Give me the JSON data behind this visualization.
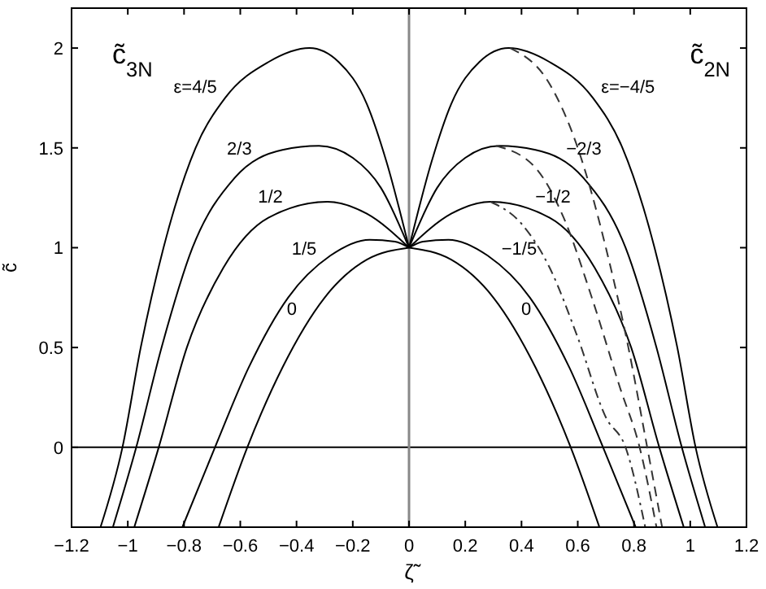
{
  "chart_data": {
    "type": "line",
    "xlabel": "ζ̃",
    "ylabel": "c̃",
    "xlim": [
      -1.2,
      1.2
    ],
    "ylim": [
      -0.4,
      2.2
    ],
    "xticks": [
      -1.2,
      -1,
      -0.8,
      -0.6,
      -0.4,
      -0.2,
      0,
      0.2,
      0.4,
      0.6,
      0.8,
      1,
      1.2
    ],
    "yticks": [
      0,
      0.5,
      1,
      1.5,
      2
    ],
    "grid": false,
    "marker": "none",
    "line_style": "solid",
    "series": [
      {
        "color": "#000000",
        "x": [
          -1.097,
          -1.019,
          -0.954,
          -0.873,
          -0.759,
          -0.654,
          -0.5,
          -0.354,
          -0.25,
          -0.15,
          -0.08,
          0
        ],
        "values": [
          -0.4,
          0,
          0.5,
          1,
          1.5,
          1.75,
          1.93,
          2,
          1.93,
          1.72,
          1.43,
          1
        ]
      },
      {
        "color": "#000000",
        "x": [
          -1.053,
          -0.97,
          -0.88,
          -0.77,
          -0.62,
          -0.45,
          -0.32,
          -0.2,
          -0.1,
          0
        ],
        "values": [
          -0.4,
          0,
          0.5,
          1,
          1.35,
          1.49,
          1.51,
          1.45,
          1.3,
          1
        ]
      },
      {
        "color": "#000000",
        "x": [
          -0.977,
          -0.89,
          -0.79,
          -0.66,
          -0.5,
          -0.29,
          -0.15,
          0
        ],
        "values": [
          -0.4,
          0,
          0.5,
          0.9,
          1.15,
          1.23,
          1.17,
          1
        ]
      },
      {
        "color": "#000000",
        "x": [
          -0.806,
          -0.69,
          -0.57,
          -0.43,
          -0.28,
          -0.14,
          -0.05,
          0
        ],
        "values": [
          -0.4,
          0,
          0.4,
          0.75,
          0.96,
          1.04,
          1.03,
          1
        ]
      },
      {
        "color": "#000000",
        "x": [
          -0.677,
          -0.575,
          -0.45,
          -0.3,
          -0.15,
          0
        ],
        "values": [
          -0.4,
          0,
          0.4,
          0.75,
          0.94,
          1
        ]
      },
      {
        "color": "#000000",
        "x": [
          0,
          0.08,
          0.15,
          0.25,
          0.354,
          0.5,
          0.654,
          0.759,
          0.873,
          0.954,
          1.019,
          1.097
        ],
        "values": [
          1,
          1.43,
          1.72,
          1.93,
          2,
          1.93,
          1.75,
          1.5,
          1,
          0.5,
          0,
          -0.4
        ]
      },
      {
        "color": "#000000",
        "x": [
          0,
          0.1,
          0.2,
          0.32,
          0.45,
          0.62,
          0.77,
          0.88,
          0.97,
          1.053
        ],
        "values": [
          1,
          1.3,
          1.45,
          1.51,
          1.49,
          1.35,
          1,
          0.5,
          0,
          -0.4
        ]
      },
      {
        "color": "#000000",
        "x": [
          0,
          0.15,
          0.29,
          0.5,
          0.66,
          0.79,
          0.89,
          0.977
        ],
        "values": [
          1,
          1.17,
          1.23,
          1.15,
          0.9,
          0.5,
          0,
          -0.4
        ]
      },
      {
        "color": "#000000",
        "x": [
          0,
          0.05,
          0.14,
          0.28,
          0.43,
          0.57,
          0.69,
          0.806
        ],
        "values": [
          1,
          1.03,
          1.04,
          0.96,
          0.75,
          0.4,
          0,
          -0.4
        ]
      },
      {
        "color": "#000000",
        "x": [
          0,
          0.15,
          0.3,
          0.45,
          0.575,
          0.677
        ],
        "values": [
          1,
          0.94,
          0.75,
          0.4,
          0,
          -0.4
        ]
      },
      {
        "color": "#333333",
        "line_style": "dashed",
        "x": [
          0.36,
          0.5,
          0.6,
          0.7,
          0.78,
          0.847,
          0.9
        ],
        "values": [
          2,
          1.82,
          1.5,
          1,
          0.5,
          0,
          -0.4
        ]
      },
      {
        "color": "#333333",
        "line_style": "dashed",
        "x": [
          0.31,
          0.45,
          0.55,
          0.65,
          0.75,
          0.82,
          0.88
        ],
        "values": [
          1.51,
          1.4,
          1.15,
          0.75,
          0.3,
          0,
          -0.4
        ]
      },
      {
        "color": "#333333",
        "line_style": "dotted",
        "x": [
          0.29,
          0.4,
          0.5,
          0.6,
          0.7,
          0.77,
          0.84
        ],
        "values": [
          1.23,
          1.12,
          0.9,
          0.55,
          0.15,
          0,
          -0.4
        ]
      }
    ],
    "ref_lines": [
      {
        "axis": "y",
        "value": 0,
        "color": "#000000"
      },
      {
        "axis": "x",
        "value": 0,
        "color": "#888888"
      }
    ],
    "annotations": [
      "c̃$_{3N}$",
      {
        "text": "ε=4/5",
        "x": -0.654,
        "y": 1.75
      },
      {
        "text": "2/3",
        "x": -0.53,
        "y": 1.44
      },
      {
        "text": "1/2",
        "x": -0.42,
        "y": 1.2
      },
      {
        "text": "1/5",
        "x": -0.3,
        "y": 0.94
      },
      {
        "text": "0",
        "x": -0.37,
        "y": 0.64
      },
      "c̃$_{2N}$",
      {
        "text": "ε=−4/5",
        "x": 0.654,
        "y": 1.75
      },
      {
        "text": "−2/3",
        "x": 0.53,
        "y": 1.44
      },
      {
        "text": "−1/2",
        "x": 0.42,
        "y": 1.2
      },
      {
        "text": "−1/5",
        "x": 0.3,
        "y": 0.94
      },
      {
        "text": "0",
        "x": 0.37,
        "y": 0.64
      }
    ]
  }
}
